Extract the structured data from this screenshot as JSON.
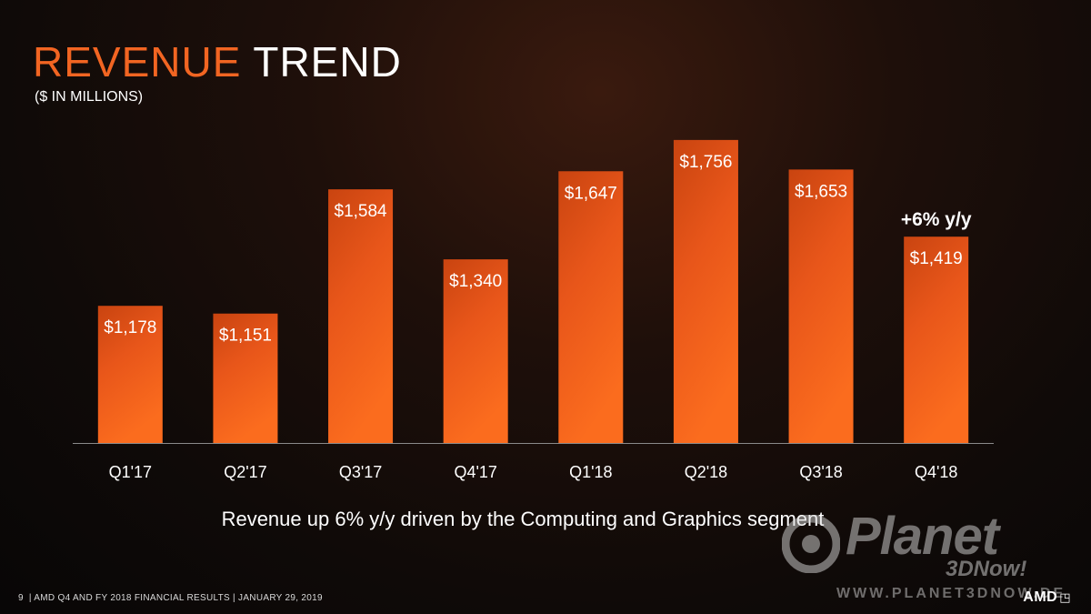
{
  "slide": {
    "title_accent": "REVENUE",
    "title_rest": "TREND",
    "subtitle": "($ IN MILLIONS)",
    "caption": "Revenue up 6% y/y driven by the Computing and Graphics segment",
    "page_number": "9",
    "footer_text": "| AMD Q4 AND FY 2018 FINANCIAL RESULTS |  JANUARY 29, 2019",
    "amd_logo_text": "AMD",
    "amd_logo_icon": "amd-arrow-icon"
  },
  "watermark": {
    "brand": "Planet",
    "brand_sub": "3DNow!",
    "url": "WWW.PLANET3DNOW.DE"
  },
  "colors": {
    "accent": "#f26522",
    "bar_top": "#e3561a",
    "bar_bottom": "#f76a1e",
    "text": "#ffffff"
  },
  "chart_data": {
    "type": "bar",
    "title": "REVENUE TREND",
    "subtitle": "($ IN MILLIONS)",
    "categories": [
      "Q1'17",
      "Q2'17",
      "Q3'17",
      "Q4'17",
      "Q1'18",
      "Q2'18",
      "Q3'18",
      "Q4'18"
    ],
    "values": [
      1178,
      1151,
      1584,
      1340,
      1647,
      1756,
      1653,
      1419
    ],
    "data_labels": [
      "$1,178",
      "$1,151",
      "$1,584",
      "$1,340",
      "$1,647",
      "$1,756",
      "$1,653",
      "$1,419"
    ],
    "annotations": [
      {
        "category": "Q4'18",
        "text": "+6% y/y"
      }
    ],
    "ylim": [
      700,
      1800
    ],
    "grid": false,
    "legend": "none",
    "xlabel": "",
    "ylabel": ""
  }
}
